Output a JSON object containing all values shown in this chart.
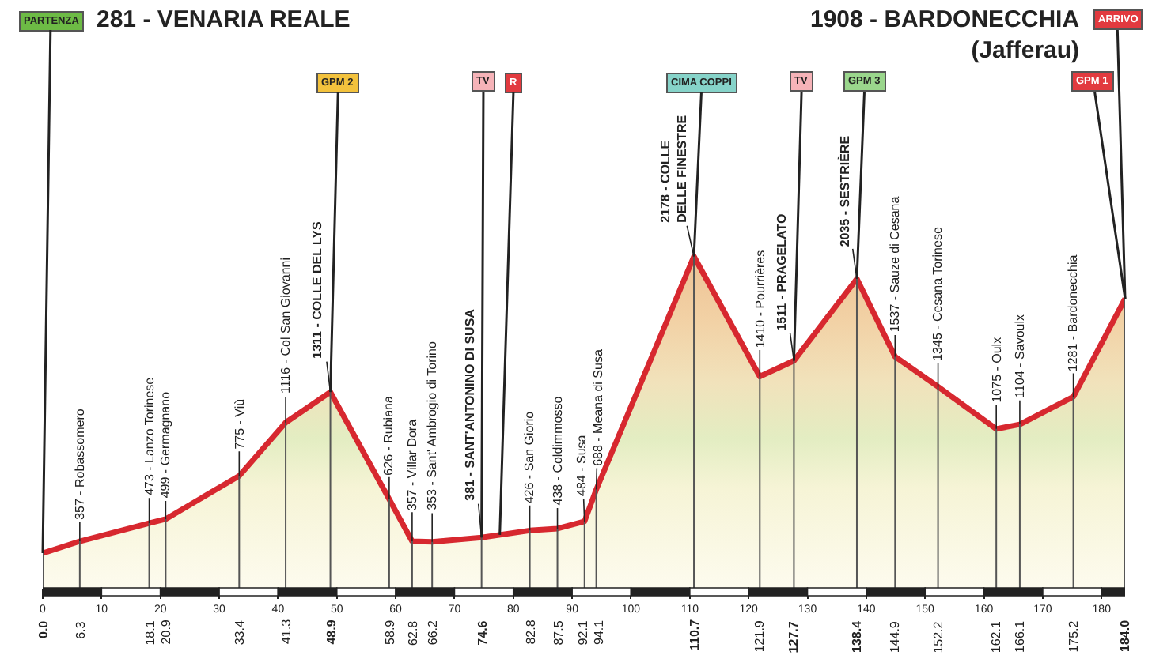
{
  "chart_data": {
    "type": "area",
    "tick_labels": "x",
    "title": "281 - VENARIA REALE",
    "subtitle": "1908 - BARDONECCHIA\n(Jafferau)",
    "x": [
      0.0,
      6.3,
      18.1,
      20.9,
      33.4,
      41.3,
      48.9,
      58.9,
      62.8,
      66.2,
      74.6,
      82.8,
      87.5,
      92.1,
      94.1,
      110.7,
      121.9,
      127.7,
      138.4,
      144.9,
      152.2,
      162.1,
      166.1,
      175.2,
      184.0
    ],
    "series": [
      {
        "color": "#d7282f",
        "values": [
          281,
          357,
          473,
          499,
          775,
          1116,
          1311,
          626,
          357,
          353,
          381,
          426,
          438,
          484,
          688,
          2178,
          1410,
          1511,
          2035,
          1537,
          1345,
          1075,
          1104,
          1281,
          1908
        ],
        "value_labels": [
          null,
          "357 - Robassomero",
          "473 - Lanzo Torinese",
          "499 - Germagnano",
          "775 - Viù",
          "1116 - Col San Giovanni",
          "1311 - COLLE DEL LYS",
          "626 - Rubiana",
          "357 - Villar Dora",
          "353 - Sant' Ambrogio di Torino",
          "381 - SANT'ANTONINO DI SUSA",
          "426 - San Giorio",
          "438 - Coldimmosso",
          "484 - Susa",
          "688 - Meana di Susa",
          "2178 - COLLE\nDELLE FINESTRE",
          "1410 - Pourrières",
          "1511 - PRAGELATO",
          "2035 - SESTRIÈRE",
          "1537 - Sauze di Cesana",
          "1345 - Cesana Torinese",
          "1075 - Oulx",
          "1104 - Savoulx",
          "1281 - Bardonecchia",
          null
        ]
      },
      {
        "type": "bar",
        "color": "#555555",
        "values": [
          281,
          357,
          473,
          499,
          775,
          1116,
          1311,
          626,
          357,
          353,
          381,
          426,
          438,
          484,
          688,
          2178,
          1410,
          1511,
          2035,
          1537,
          1345,
          1075,
          1104,
          1281,
          1908
        ]
      }
    ],
    "xlim": [
      0,
      184
    ],
    "xticks": [
      {
        "value": 0,
        "label": "0.0"
      },
      6.3,
      18.1,
      20.9,
      33.4,
      41.3,
      48.9,
      58.9,
      62.8,
      66.2,
      74.6,
      82.8,
      87.5,
      92.1,
      94.1,
      110.7,
      121.9,
      127.7,
      138.4,
      144.9,
      152.2,
      162.1,
      166.1,
      175.2,
      {
        "value": 184,
        "label": "184.0"
      }
    ],
    "x2lim": [
      0,
      184
    ],
    "x2ticks": [
      0,
      10,
      20,
      30,
      40,
      50,
      60,
      70,
      80,
      90,
      100,
      110,
      120,
      130,
      140,
      150,
      160,
      170,
      180
    ],
    "annotations": [
      {
        "text": "PARTENZA",
        "x": 0,
        "y": 281
      },
      {
        "text": "GPM 2",
        "x": 48.9,
        "y": 1311
      },
      {
        "text": "TV",
        "x": 74.6,
        "y": 381
      },
      {
        "text": "R",
        "x": 77.7,
        "y": 398
      },
      {
        "text": "CIMA COPPI",
        "x": 110.7,
        "y": 2178
      },
      {
        "text": "TV",
        "x": 127.7,
        "y": 1511
      },
      {
        "text": "GPM 3",
        "x": 138.4,
        "y": 2035
      },
      {
        "text": "ARRIVO",
        "x": 184,
        "y": 1908
      },
      {
        "text": "GPM 1",
        "x": 184,
        "y": 1908
      }
    ]
  }
}
